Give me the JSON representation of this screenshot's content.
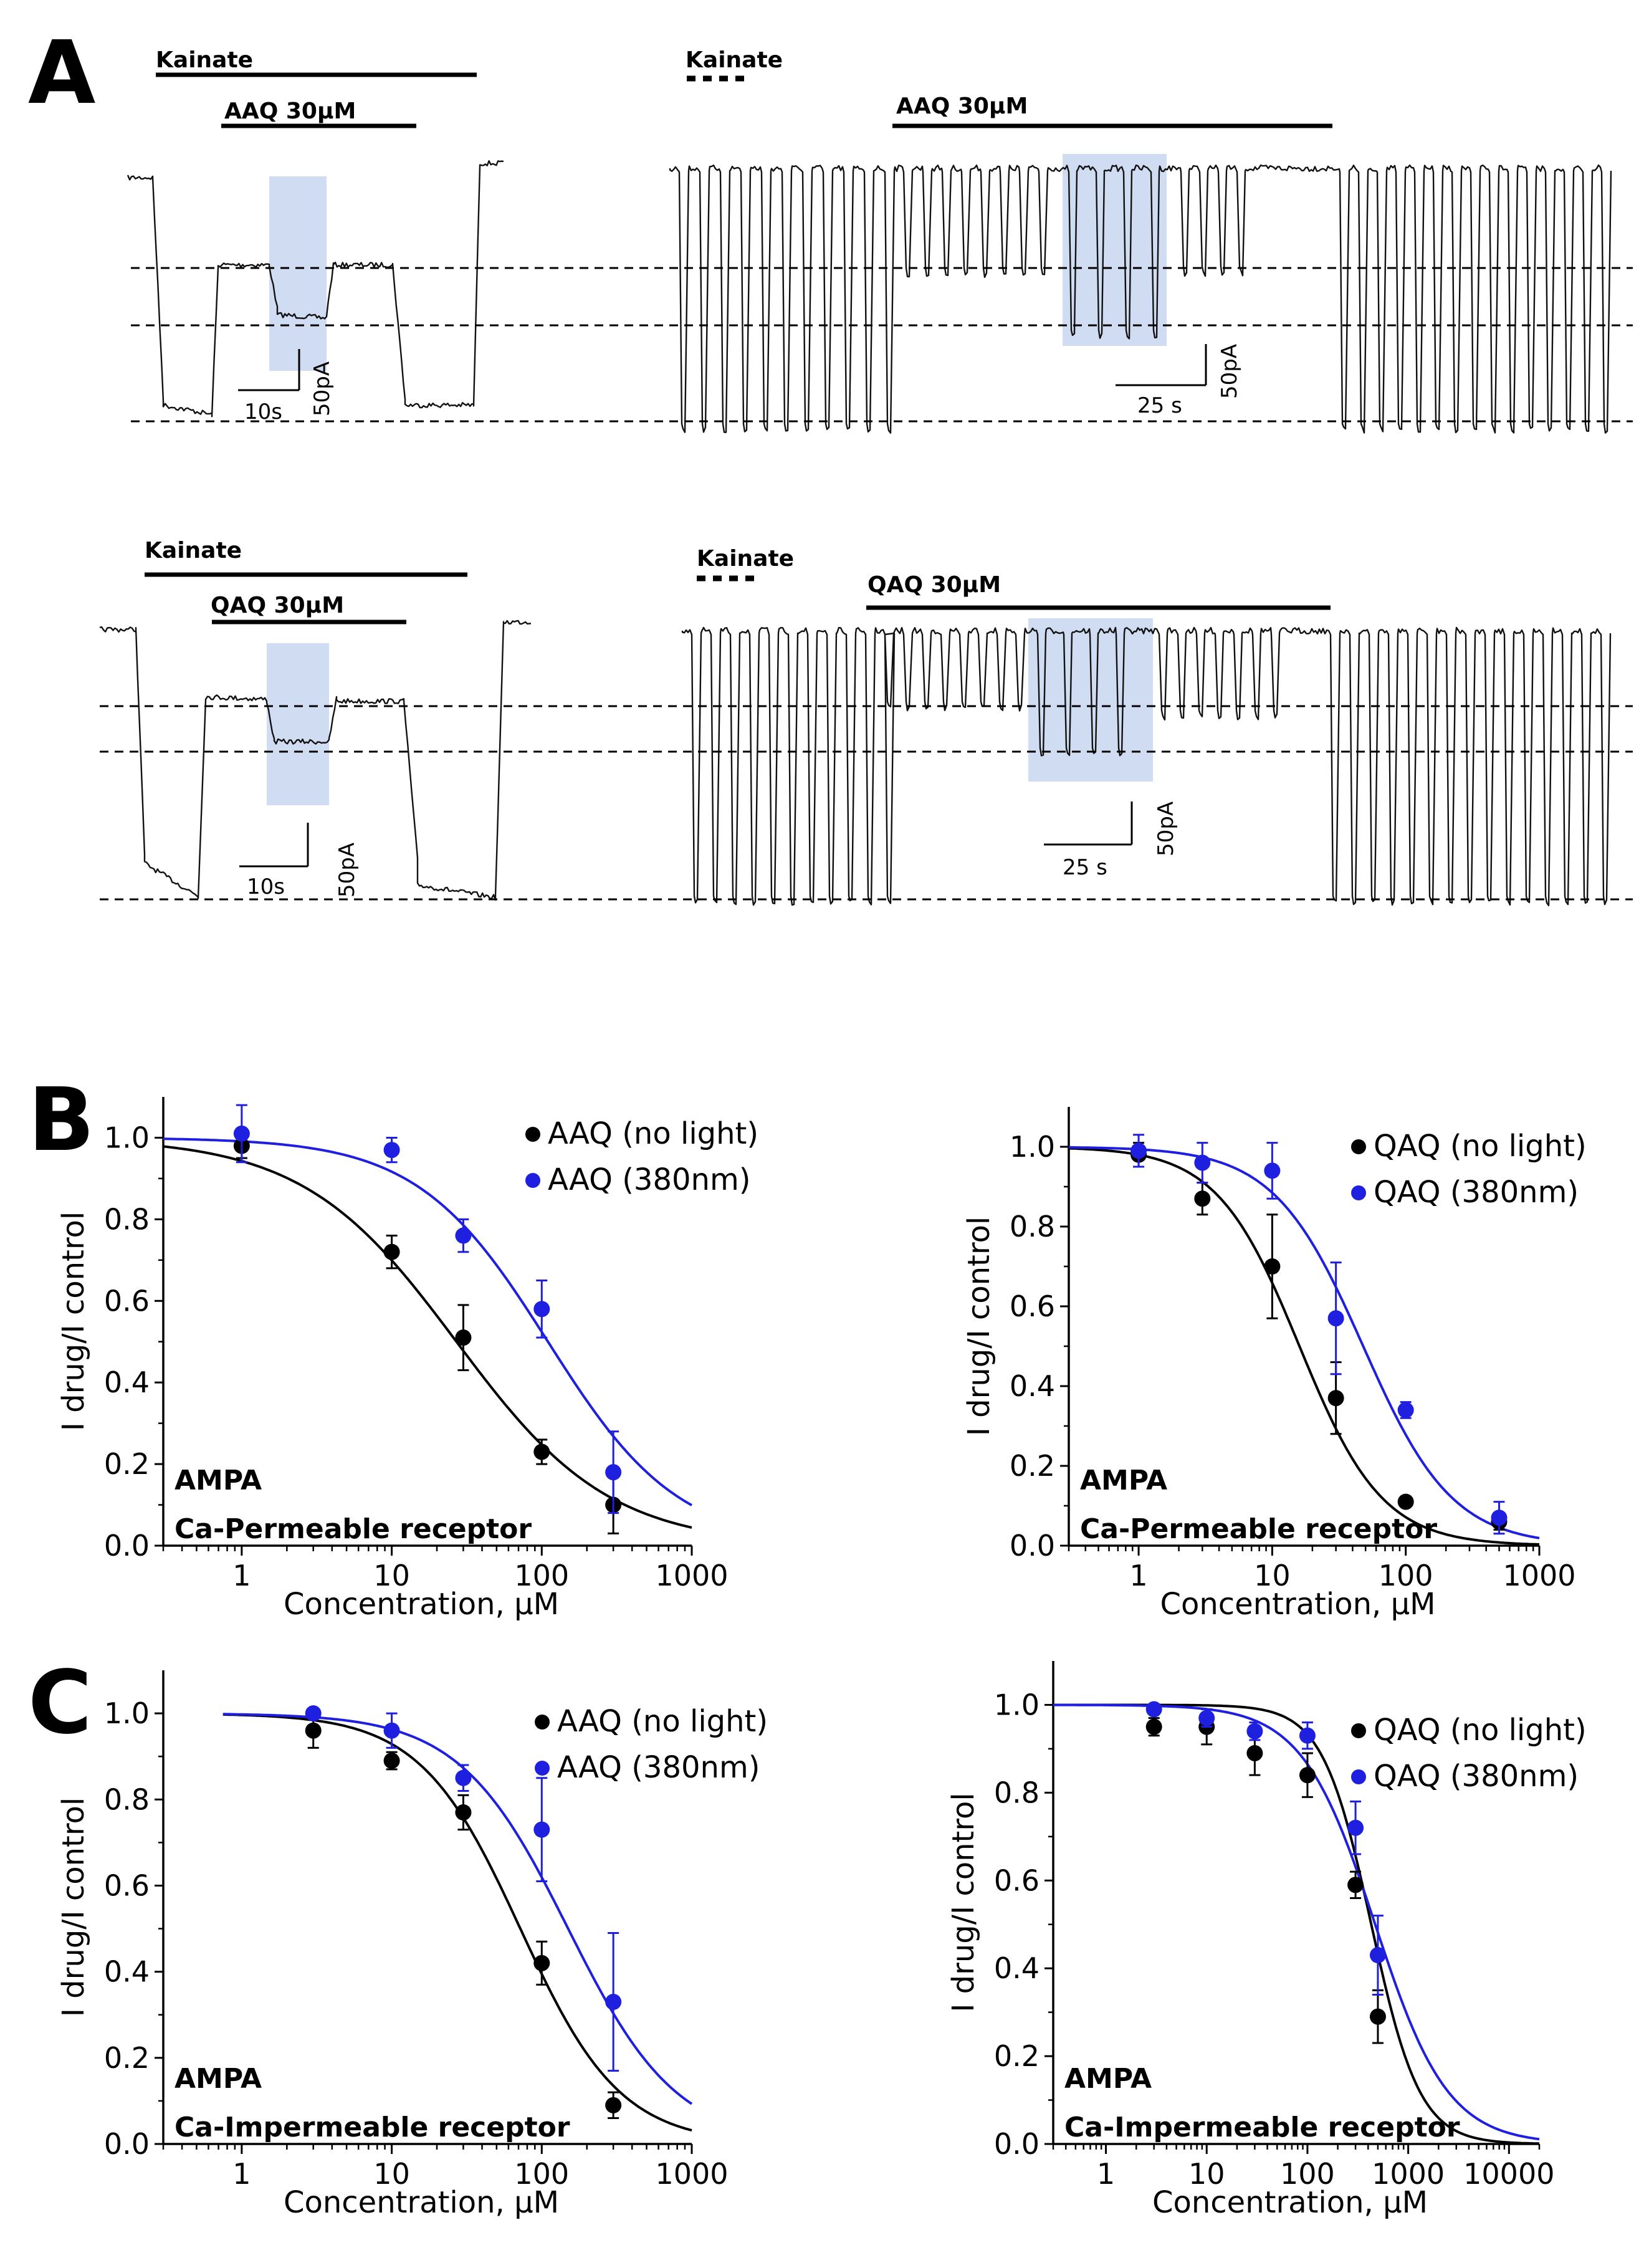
{
  "panel_letters": {
    "a": "A",
    "b": "B",
    "c": "C"
  },
  "colors": {
    "no_light": "#000000",
    "light": "#1f1fe0",
    "highlight": "#a9bfe6"
  },
  "panel_a": {
    "rows": [
      {
        "left": {
          "agonist_label": "Kainate",
          "drug_label": "AAQ 30μM",
          "time_scale": "10s",
          "current_scale": "50pA"
        },
        "right": {
          "agonist_label": "Kainate",
          "drug_label": "AAQ 30μM",
          "time_scale": "25 s",
          "current_scale": "50pA"
        }
      },
      {
        "left": {
          "agonist_label": "Kainate",
          "drug_label": "QAQ 30μM",
          "time_scale": "10s",
          "current_scale": "50pA"
        },
        "right": {
          "agonist_label": "Kainate",
          "drug_label": "QAQ 30μM",
          "time_scale": "25 s",
          "current_scale": "50pA"
        }
      }
    ]
  },
  "chart_data": [
    {
      "id": "B-left",
      "type": "scatter",
      "xscale": "log",
      "xlim": [
        0.3,
        1000
      ],
      "ylim": [
        0.0,
        1.1
      ],
      "xticks": [
        1,
        10,
        100,
        1000
      ],
      "xtick_labels": [
        "1",
        "10",
        "100",
        "1000"
      ],
      "yticks": [
        0.0,
        0.2,
        0.4,
        0.6,
        0.8,
        1.0
      ],
      "ytick_labels": [
        "0.0",
        "0.2",
        "0.4",
        "0.6",
        "0.8",
        "1.0"
      ],
      "xlabel": "Concentration, μM",
      "ylabel": "I drug/I control",
      "annotations": [
        "AMPA",
        "Ca-Permeable receptor"
      ],
      "series": [
        {
          "name": "AAQ (no light)",
          "color": "#000000",
          "x": [
            1,
            10,
            30,
            100,
            300
          ],
          "y": [
            0.98,
            0.72,
            0.51,
            0.23,
            0.1
          ],
          "err": [
            0.03,
            0.04,
            0.08,
            0.03,
            0.07
          ],
          "fit": {
            "ic50": 27,
            "hill": 0.85
          }
        },
        {
          "name": "AAQ (380nm)",
          "color": "#1f1fe0",
          "x": [
            1,
            10,
            30,
            100,
            300
          ],
          "y": [
            1.01,
            0.97,
            0.76,
            0.58,
            0.18
          ],
          "err": [
            0.07,
            0.03,
            0.04,
            0.07,
            0.1
          ],
          "fit": {
            "ic50": 110,
            "hill": 1.0
          }
        }
      ]
    },
    {
      "id": "B-right",
      "type": "scatter",
      "xscale": "log",
      "xlim": [
        0.3,
        1000
      ],
      "ylim": [
        0.0,
        1.1
      ],
      "xticks": [
        1,
        10,
        100,
        1000
      ],
      "xtick_labels": [
        "1",
        "10",
        "100",
        "1000"
      ],
      "yticks": [
        0.0,
        0.2,
        0.4,
        0.6,
        0.8,
        1.0
      ],
      "ytick_labels": [
        "0.0",
        "0.2",
        "0.4",
        "0.6",
        "0.8",
        "1.0"
      ],
      "xlabel": "Concentration, μM",
      "ylabel": "I drug/I control",
      "annotations": [
        "AMPA",
        "Ca-Permeable  receptor"
      ],
      "series": [
        {
          "name": "QAQ (no light)",
          "color": "#000000",
          "x": [
            1,
            3,
            10,
            30,
            100,
            500
          ],
          "y": [
            0.98,
            0.87,
            0.7,
            0.37,
            0.11,
            0.06
          ],
          "err": [
            0.03,
            0.04,
            0.13,
            0.09,
            0.01,
            0.02
          ],
          "fit": {
            "ic50": 16,
            "hill": 1.4
          }
        },
        {
          "name": "QAQ (380nm)",
          "color": "#1f1fe0",
          "x": [
            1,
            3,
            10,
            30,
            100,
            500
          ],
          "y": [
            0.99,
            0.96,
            0.94,
            0.57,
            0.34,
            0.07
          ],
          "err": [
            0.04,
            0.05,
            0.07,
            0.14,
            0.02,
            0.04
          ],
          "fit": {
            "ic50": 48,
            "hill": 1.3
          }
        }
      ]
    },
    {
      "id": "C-left",
      "type": "scatter",
      "xscale": "log",
      "xlim": [
        0.3,
        1000
      ],
      "ylim": [
        0.0,
        1.1
      ],
      "xticks": [
        1,
        10,
        100,
        1000
      ],
      "xtick_labels": [
        "1",
        "10",
        "100",
        "1000"
      ],
      "yticks": [
        0.0,
        0.2,
        0.4,
        0.6,
        0.8,
        1.0
      ],
      "ytick_labels": [
        "0.0",
        "0.2",
        "0.4",
        "0.6",
        "0.8",
        "1.0"
      ],
      "xlabel": "Concentration, μM",
      "ylabel": "I drug/I control",
      "annotations": [
        "AMPA",
        "Ca-Impermeable receptor"
      ],
      "series": [
        {
          "name": "AAQ (no light)",
          "color": "#000000",
          "x": [
            3,
            10,
            30,
            100,
            300
          ],
          "y": [
            0.96,
            0.89,
            0.77,
            0.42,
            0.09
          ],
          "err": [
            0.04,
            0.02,
            0.04,
            0.05,
            0.03
          ],
          "fit": {
            "ic50": 72,
            "hill": 1.3
          },
          "fit_start": 0.75
        },
        {
          "name": "AAQ (380nm)",
          "color": "#1f1fe0",
          "x": [
            3,
            10,
            30,
            100,
            300
          ],
          "y": [
            1.0,
            0.96,
            0.85,
            0.73,
            0.33
          ],
          "err": [
            0.01,
            0.04,
            0.03,
            0.12,
            0.16
          ],
          "fit": {
            "ic50": 150,
            "hill": 1.2
          },
          "fit_start": 0.75
        }
      ]
    },
    {
      "id": "C-right",
      "type": "scatter",
      "xscale": "log",
      "xlim": [
        0.3,
        20000
      ],
      "ylim": [
        0.0,
        1.1
      ],
      "xticks": [
        1,
        10,
        100,
        1000,
        10000
      ],
      "xtick_labels": [
        "1",
        "10",
        "100",
        "1000",
        "10000"
      ],
      "yticks": [
        0.0,
        0.2,
        0.4,
        0.6,
        0.8,
        1.0
      ],
      "ytick_labels": [
        "0.0",
        "0.2",
        "0.4",
        "0.6",
        "0.8",
        "1.0"
      ],
      "xlabel": "Concentration, μM",
      "ylabel": "I drug/I control",
      "annotations": [
        "AMPA",
        "Ca-Impermeable receptor"
      ],
      "series": [
        {
          "name": "QAQ (no light)",
          "color": "#000000",
          "x": [
            3,
            10,
            30,
            100,
            300,
            500
          ],
          "y": [
            0.95,
            0.95,
            0.89,
            0.84,
            0.59,
            0.29
          ],
          "err": [
            0.02,
            0.04,
            0.05,
            0.05,
            0.03,
            0.06
          ],
          "fit": {
            "ic50": 430,
            "hill": 1.8
          }
        },
        {
          "name": "QAQ (380nm)",
          "color": "#1f1fe0",
          "x": [
            3,
            10,
            30,
            100,
            300,
            500
          ],
          "y": [
            0.99,
            0.97,
            0.94,
            0.93,
            0.72,
            0.43
          ],
          "err": [
            0.01,
            0.02,
            0.02,
            0.03,
            0.06,
            0.09
          ],
          "fit": {
            "ic50": 470,
            "hill": 1.2
          }
        }
      ]
    }
  ]
}
